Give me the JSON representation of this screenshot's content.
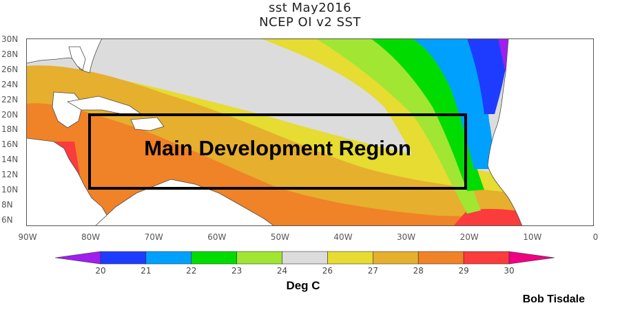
{
  "title": {
    "line1": "sst May2016",
    "line2": "NCEP OI v2 SST"
  },
  "axes": {
    "lat_labels": [
      "30N",
      "28N",
      "26N",
      "24N",
      "22N",
      "20N",
      "18N",
      "16N",
      "14N",
      "12N",
      "10N",
      "8N",
      "6N"
    ],
    "lon_labels": [
      "90W",
      "80W",
      "70W",
      "60W",
      "50W",
      "40W",
      "30W",
      "20W",
      "10W",
      "0"
    ],
    "lat_range": [
      5,
      30
    ],
    "lon_range": [
      -90,
      0
    ]
  },
  "colorbar": {
    "boundaries": [
      "20",
      "21",
      "22",
      "23",
      "24",
      "26",
      "27",
      "28",
      "29",
      "30"
    ],
    "colors": [
      "#a01ef0",
      "#1e3cff",
      "#00a0ff",
      "#00dc00",
      "#a0e632",
      "#dcdcdc",
      "#e6dc32",
      "#e6af2d",
      "#f08228",
      "#fa3c3c",
      "#f00082"
    ],
    "unit": "Deg C"
  },
  "annotation": {
    "region_label": "Main Development Region",
    "region_bounds": {
      "lon": [
        -80,
        -20
      ],
      "lat": [
        10,
        20
      ]
    }
  },
  "author": "Bob Tisdale",
  "colors": {
    "land": "#ffffff",
    "coast": "#4a4a4a",
    "box": "#000000"
  }
}
